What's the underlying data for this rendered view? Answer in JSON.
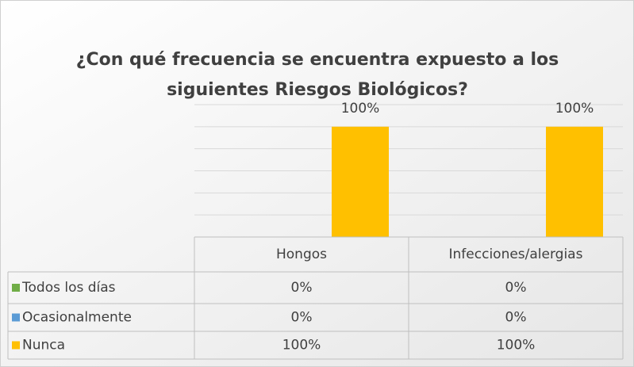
{
  "chart_data": {
    "type": "bar",
    "title": [
      "¿Con qué frecuencia se encuentra expuesto a los",
      "siguientes Riesgos Biológicos?"
    ],
    "categories": [
      "Hongos",
      "Infecciones/alergias"
    ],
    "series": [
      {
        "name": "Todos los días",
        "color": "#70ad47",
        "values": [
          0,
          0
        ],
        "value_labels": [
          "0%",
          "0%"
        ]
      },
      {
        "name": "Ocasionalmente",
        "color": "#5b9bd5",
        "values": [
          0,
          0
        ],
        "value_labels": [
          "0%",
          "0%"
        ]
      },
      {
        "name": "Nunca",
        "color": "#ffc000",
        "values": [
          100,
          100
        ],
        "value_labels": [
          "100%",
          "100%"
        ]
      }
    ],
    "ylim": [
      0,
      120
    ],
    "yticks": [
      0,
      20,
      40,
      60,
      80,
      100,
      120
    ],
    "grid": true,
    "data_table": true
  }
}
